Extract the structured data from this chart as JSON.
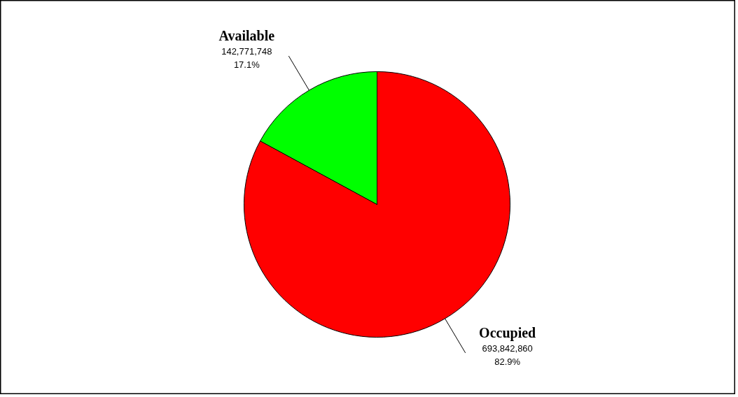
{
  "chart_data": {
    "type": "pie",
    "categories": [
      "Occupied",
      "Available"
    ],
    "values": [
      693842860,
      142771748
    ],
    "colors": [
      "#ff0000",
      "#00ff00"
    ],
    "value_labels": [
      "693,842,860\n82.9%",
      "142,771,748\n17.1%"
    ]
  }
}
